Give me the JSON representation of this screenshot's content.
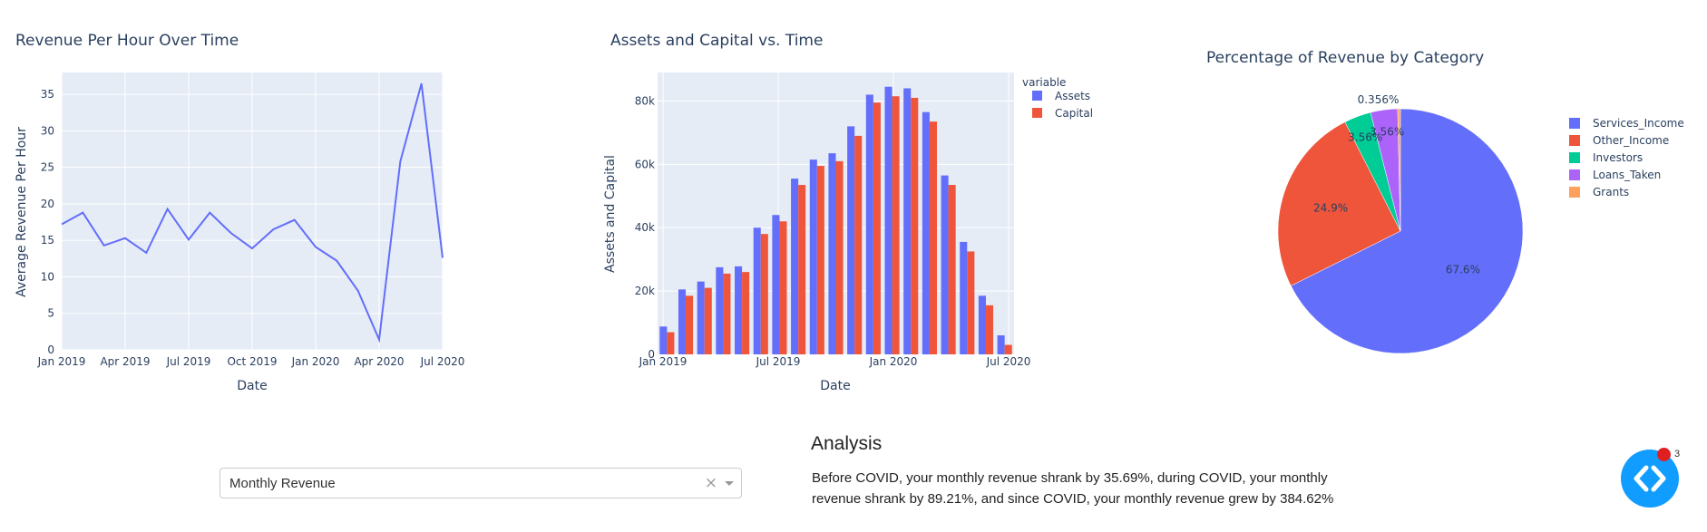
{
  "chart_data": [
    {
      "type": "line",
      "title": "Revenue Per Hour Over Time",
      "xlabel": "Date",
      "ylabel": "Average Revenue Per Hour",
      "ylim": [
        0,
        38
      ],
      "yticks": [
        0,
        5,
        10,
        15,
        20,
        25,
        30,
        35
      ],
      "xtick_labels": [
        "Jan 2019",
        "Apr 2019",
        "Jul 2019",
        "Oct 2019",
        "Jan 2020",
        "Apr 2020",
        "Jul 2020"
      ],
      "x": [
        0,
        1,
        2,
        3,
        4,
        5,
        6,
        7,
        8,
        9,
        10,
        11,
        12,
        13,
        14,
        15,
        16,
        17,
        18
      ],
      "x_range": [
        0,
        18
      ],
      "values": [
        17.2,
        18.8,
        14.3,
        15.3,
        13.3,
        19.3,
        15.1,
        18.8,
        16.0,
        13.9,
        16.5,
        17.8,
        14.1,
        12.2,
        8.1,
        1.4,
        25.8,
        36.5,
        12.6
      ],
      "grid": true,
      "line_color": "#636efa"
    },
    {
      "type": "bar",
      "title": "Assets and Capital vs. Time",
      "xlabel": "Date",
      "ylabel": "Assets and Capital",
      "ylim": [
        0,
        89000
      ],
      "yticks": [
        0,
        20000,
        40000,
        60000,
        80000
      ],
      "ytick_labels": [
        "0",
        "20k",
        "40k",
        "60k",
        "80k"
      ],
      "xtick_labels": [
        "Jan 2019",
        "Jul 2019",
        "Jan 2020",
        "Jul 2020"
      ],
      "legend_title": "variable",
      "series": [
        {
          "name": "Assets",
          "color": "#636efa",
          "values": [
            8800,
            20500,
            23000,
            27500,
            27800,
            40000,
            44000,
            55500,
            61500,
            63500,
            72000,
            82000,
            84500,
            84000,
            76500,
            56500,
            35500,
            18500,
            6000
          ]
        },
        {
          "name": "Capital",
          "color": "#ef553b",
          "values": [
            7000,
            18500,
            21000,
            25500,
            26000,
            38000,
            42000,
            53500,
            59500,
            61000,
            69000,
            79500,
            81500,
            81000,
            73500,
            53500,
            32500,
            15500,
            3000
          ]
        }
      ],
      "grid": true
    },
    {
      "type": "pie",
      "title": "Percentage of Revenue by Category",
      "labels": [
        "Services_Income",
        "Other_Income",
        "Investors",
        "Loans_Taken",
        "Grants"
      ],
      "values": [
        67.6,
        24.9,
        3.56,
        3.56,
        0.356
      ],
      "value_labels": [
        "67.6%",
        "24.9%",
        "3.56%",
        "3.56%",
        "0.356%"
      ],
      "colors": [
        "#636efa",
        "#ef553b",
        "#00cc96",
        "#ab63fa",
        "#ffa15a"
      ],
      "legend": "right"
    }
  ],
  "dropdown": {
    "selected": "Monthly Revenue",
    "clear_symbol": "×"
  },
  "analysis": {
    "title": "Analysis",
    "text": "Before COVID, your monthly revenue shrank by 35.69%, during COVID, your monthly revenue shrank by 89.21%, and since COVID, your monthly revenue grew by 384.62%"
  },
  "dev_tools": {
    "error_count": "3"
  }
}
